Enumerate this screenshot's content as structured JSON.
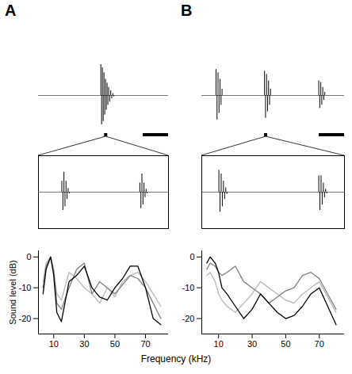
{
  "chart_data": [
    {
      "type": "spikes",
      "title": "A",
      "color": "#000000",
      "tick_labels": false,
      "xlim": [
        0,
        100
      ],
      "ylim": [
        -1,
        1
      ],
      "x": [
        48,
        48.6,
        49.2,
        49.8,
        50.4,
        51,
        51.6,
        52.2,
        52.8,
        53.4,
        54,
        54.8,
        55.6,
        56.4,
        57.2,
        58
      ],
      "values": [
        0.95,
        -0.9,
        0.85,
        -0.8,
        0.7,
        -0.6,
        0.5,
        -0.45,
        0.38,
        -0.3,
        0.25,
        -0.2,
        0.15,
        -0.1,
        0.06,
        -0.04
      ]
    },
    {
      "type": "spikes",
      "color": "#000000",
      "tick_labels": false,
      "xlim": [
        0,
        100
      ],
      "ylim": [
        -1,
        1
      ],
      "x": [
        18,
        18.8,
        19.6,
        20.4,
        21.2,
        22,
        22.8,
        23.6,
        78,
        78.8,
        79.6,
        80.4,
        81.2,
        82,
        82.8,
        83.6
      ],
      "values": [
        0.3,
        -0.5,
        0.55,
        -0.4,
        0.3,
        -0.2,
        0.1,
        -0.05,
        0.25,
        -0.45,
        0.5,
        -0.35,
        0.25,
        -0.15,
        0.08,
        -0.04
      ]
    },
    {
      "type": "line",
      "ylabel": "Sound level (dB)",
      "xlabel": "Frequency (kHz)",
      "xlim": [
        0,
        85
      ],
      "xticks": [
        10,
        30,
        50,
        70
      ],
      "ylim": [
        -25,
        2
      ],
      "yticks": [
        -20,
        -10,
        0
      ],
      "x": [
        3,
        5,
        8,
        10,
        12,
        15,
        20,
        25,
        30,
        35,
        40,
        45,
        50,
        55,
        60,
        65,
        70,
        75,
        80
      ],
      "series": [
        {
          "color": "#000000",
          "values": [
            -12,
            -4,
            0,
            -6,
            -18,
            -21,
            -8,
            -6,
            -3,
            -10,
            -13,
            -14,
            -10,
            -7,
            -3,
            -3,
            -10,
            -20,
            -22
          ]
        },
        {
          "color": "#808080",
          "values": [
            -10,
            -3,
            0,
            -5,
            -15,
            -17,
            -10,
            -4,
            -2,
            -12,
            -8,
            -10,
            -12,
            -9,
            -6,
            -7,
            -10,
            -15,
            -20
          ]
        },
        {
          "color": "#b8b8b8",
          "values": [
            -8,
            -2,
            0,
            -4,
            -12,
            -14,
            -5,
            -7,
            -10,
            -12,
            -15,
            -10,
            -13,
            -8,
            -6,
            -5,
            -8,
            -12,
            -16
          ]
        }
      ]
    },
    {
      "type": "spikes",
      "title": "B",
      "color": "#000000",
      "tick_labels": false,
      "xlim": [
        0,
        100
      ],
      "ylim": [
        -1,
        1
      ],
      "x": [
        10,
        10.7,
        11.4,
        12.1,
        12.8,
        13.5,
        14.2,
        44,
        44.7,
        45.4,
        46.1,
        46.8,
        47.5,
        48.2,
        82,
        82.7,
        83.4,
        84.1,
        84.8,
        85.5,
        86.2
      ],
      "values": [
        0.8,
        -0.75,
        0.7,
        -0.55,
        0.5,
        -0.3,
        0.2,
        0.75,
        -0.7,
        0.65,
        -0.5,
        0.45,
        -0.3,
        0.2,
        0.45,
        -0.4,
        0.4,
        -0.3,
        0.25,
        -0.15,
        0.1
      ]
    },
    {
      "type": "spikes",
      "color": "#000000",
      "tick_labels": false,
      "xlim": [
        0,
        100
      ],
      "ylim": [
        -1,
        1
      ],
      "x": [
        12,
        12.8,
        13.6,
        14.4,
        15.2,
        16,
        16.8,
        17.6,
        82,
        82.8,
        83.6,
        84.4,
        85.2,
        86,
        86.8,
        87.6
      ],
      "values": [
        0.6,
        -0.55,
        0.5,
        -0.4,
        0.3,
        -0.2,
        0.12,
        -0.06,
        0.45,
        -0.5,
        0.45,
        -0.35,
        0.25,
        -0.15,
        0.08,
        -0.04
      ]
    },
    {
      "type": "line",
      "xlim": [
        0,
        85
      ],
      "xticks": [
        10,
        30,
        50,
        70
      ],
      "ylim": [
        -25,
        2
      ],
      "yticks": [
        -20,
        -10,
        0
      ],
      "x": [
        3,
        5,
        8,
        10,
        12,
        15,
        20,
        25,
        30,
        35,
        40,
        45,
        50,
        55,
        60,
        65,
        70,
        75,
        80
      ],
      "series": [
        {
          "color": "#000000",
          "values": [
            -2,
            0,
            -2,
            -5,
            -10,
            -12,
            -16,
            -20,
            -17,
            -12,
            -15,
            -18,
            -20,
            -19,
            -16,
            -12,
            -10,
            -16,
            -22
          ]
        },
        {
          "color": "#808080",
          "values": [
            -4,
            -2,
            -3,
            -5,
            -6,
            -5,
            -3,
            -8,
            -10,
            -12,
            -15,
            -13,
            -11,
            -10,
            -6,
            -5,
            -7,
            -12,
            -17
          ]
        },
        {
          "color": "#b8b8b8",
          "values": [
            -6,
            -5,
            -8,
            -12,
            -14,
            -16,
            -18,
            -15,
            -12,
            -8,
            -10,
            -12,
            -14,
            -15,
            -12,
            -10,
            -8,
            -13,
            -18
          ]
        }
      ]
    }
  ]
}
